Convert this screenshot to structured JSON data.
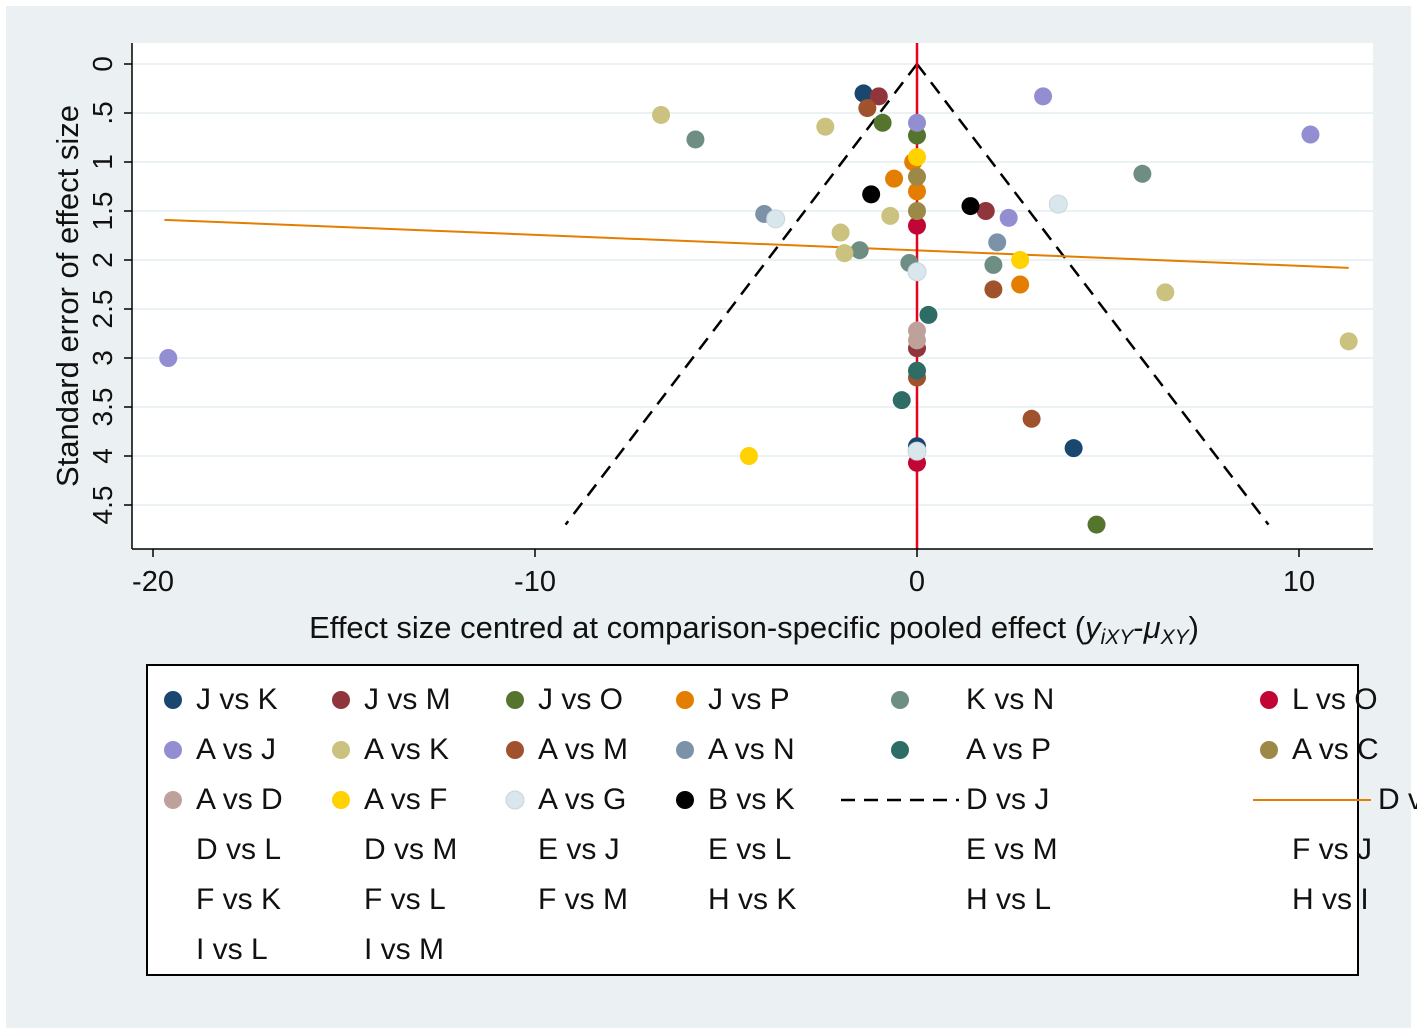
{
  "chart_data": {
    "type": "scatter",
    "title": "",
    "xlabel": "Effect size centred at comparison-specific pooled effect (",
    "xlabel_math": "y",
    "xlabel_math_sub": "iXY",
    "xlabel_dash": "-",
    "xlabel_mu": "μ",
    "xlabel_mu_sub": "XY",
    "xlabel_close": ")",
    "ylabel": "Standard error of effect size",
    "xlim": [
      -20.5,
      12.0
    ],
    "ylim": [
      0,
      4.95
    ],
    "y_reversed": true,
    "x_ticks": [
      -20,
      -10,
      0,
      10
    ],
    "x_tick_labels": [
      "-20",
      "-10",
      "0",
      "10"
    ],
    "y_ticks": [
      0,
      0.5,
      1,
      1.5,
      2,
      2.5,
      3,
      3.5,
      4,
      4.5
    ],
    "y_tick_labels": [
      "0",
      ".5",
      "1",
      "1.5",
      "2",
      "2.5",
      "3",
      "3.5",
      "4",
      "4.5"
    ],
    "grid": true,
    "reference_line": {
      "x": 0,
      "color": "#e8001c"
    },
    "funnel": {
      "apex": [
        0,
        0
      ],
      "left_end": [
        -9.2,
        4.7
      ],
      "right_end": [
        9.2,
        4.7
      ]
    },
    "regression_line": {
      "x1": -19.7,
      "y1": 1.59,
      "x2": 11.3,
      "y2": 2.08
    },
    "series": [
      {
        "name": "J vs K",
        "color": "#1a476f",
        "points": [
          [
            -1.4,
            0.3
          ],
          [
            0,
            3.9
          ],
          [
            4.1,
            3.92
          ]
        ]
      },
      {
        "name": "J vs M",
        "color": "#90353b",
        "points": [
          [
            -1.0,
            0.33
          ],
          [
            1.8,
            1.5
          ],
          [
            0,
            2.9
          ]
        ]
      },
      {
        "name": "J vs O",
        "color": "#55752f",
        "points": [
          [
            -0.9,
            0.6
          ],
          [
            0,
            0.73
          ],
          [
            4.7,
            4.7
          ]
        ]
      },
      {
        "name": "J vs P",
        "color": "#e37e00",
        "points": [
          [
            -0.6,
            1.17
          ],
          [
            -0.1,
            1.0
          ],
          [
            0,
            1.3
          ],
          [
            2.7,
            2.25
          ]
        ]
      },
      {
        "name": "K vs N",
        "color": "#6e8e84",
        "points": [
          [
            -5.8,
            0.77
          ],
          [
            5.9,
            1.12
          ],
          [
            -1.5,
            1.9
          ],
          [
            -0.2,
            2.03
          ],
          [
            2.0,
            2.05
          ]
        ]
      },
      {
        "name": "L vs O",
        "color": "#c10534",
        "points": [
          [
            0,
            1.65
          ],
          [
            0,
            4.07
          ]
        ]
      },
      {
        "name": "A vs J",
        "color": "#938dd2",
        "points": [
          [
            3.3,
            0.33
          ],
          [
            10.3,
            0.72
          ],
          [
            0,
            0.6
          ],
          [
            2.4,
            1.57
          ],
          [
            -19.6,
            3.0
          ]
        ]
      },
      {
        "name": "A vs K",
        "color": "#cac27e",
        "points": [
          [
            -6.7,
            0.52
          ],
          [
            -2.4,
            0.64
          ],
          [
            -0.7,
            1.55
          ],
          [
            -2.0,
            1.72
          ],
          [
            -1.9,
            1.93
          ],
          [
            6.5,
            2.33
          ],
          [
            11.3,
            2.83
          ]
        ]
      },
      {
        "name": "A vs M",
        "color": "#a0522d",
        "points": [
          [
            -1.3,
            0.45
          ],
          [
            2.0,
            2.3
          ],
          [
            0,
            3.2
          ],
          [
            3.0,
            3.62
          ]
        ]
      },
      {
        "name": "A vs N",
        "color": "#7b92a8",
        "points": [
          [
            -4.0,
            1.53
          ],
          [
            2.1,
            1.82
          ]
        ]
      },
      {
        "name": "A vs P",
        "color": "#2d6d66",
        "points": [
          [
            0.3,
            2.56
          ],
          [
            0,
            3.13
          ],
          [
            -0.4,
            3.43
          ]
        ]
      },
      {
        "name": "A vs C",
        "color": "#9c8847",
        "points": [
          [
            0,
            1.15
          ],
          [
            0,
            1.5
          ]
        ]
      },
      {
        "name": "A vs D",
        "color": "#bfa19c",
        "points": [
          [
            0,
            2.72
          ],
          [
            0,
            2.82
          ]
        ]
      },
      {
        "name": "A vs F",
        "color": "#ffd200",
        "points": [
          [
            0,
            0.95
          ],
          [
            2.7,
            2.0
          ],
          [
            -4.4,
            4.0
          ]
        ]
      },
      {
        "name": "A vs G",
        "color": "#d9e6eb",
        "points": [
          [
            3.7,
            1.43
          ],
          [
            -3.7,
            1.58
          ],
          [
            0,
            2.12
          ],
          [
            0,
            3.95
          ]
        ]
      },
      {
        "name": "B vs K",
        "color": "#000000",
        "points": [
          [
            -1.2,
            1.33
          ],
          [
            1.4,
            1.45
          ]
        ]
      }
    ],
    "legend": {
      "columns": 6,
      "entries": [
        {
          "label": "J vs K",
          "type": "marker",
          "color": "#1a476f"
        },
        {
          "label": "J vs M",
          "type": "marker",
          "color": "#90353b"
        },
        {
          "label": "J vs O",
          "type": "marker",
          "color": "#55752f"
        },
        {
          "label": "J vs P",
          "type": "marker",
          "color": "#e37e00"
        },
        {
          "label": "K vs N",
          "type": "marker",
          "color": "#6e8e84"
        },
        {
          "label": "L vs O",
          "type": "marker",
          "color": "#c10534"
        },
        {
          "label": "A vs J",
          "type": "marker",
          "color": "#938dd2"
        },
        {
          "label": "A vs K",
          "type": "marker",
          "color": "#cac27e"
        },
        {
          "label": "A vs M",
          "type": "marker",
          "color": "#a0522d"
        },
        {
          "label": "A vs N",
          "type": "marker",
          "color": "#7b92a8"
        },
        {
          "label": "A vs P",
          "type": "marker",
          "color": "#2d6d66"
        },
        {
          "label": "A vs C",
          "type": "marker",
          "color": "#9c8847"
        },
        {
          "label": "A vs D",
          "type": "marker",
          "color": "#bfa19c"
        },
        {
          "label": "A vs F",
          "type": "marker",
          "color": "#ffd200"
        },
        {
          "label": "A vs G",
          "type": "marker",
          "color": "#d9e6eb"
        },
        {
          "label": "B vs K",
          "type": "marker",
          "color": "#000000"
        },
        {
          "label": "D vs J",
          "type": "dashed-line",
          "color": "#000000"
        },
        {
          "label": "D vs K",
          "type": "line",
          "color": "#e37e00"
        },
        {
          "label": "D vs L",
          "type": "none",
          "color": ""
        },
        {
          "label": "D vs M",
          "type": "none",
          "color": ""
        },
        {
          "label": "E vs J",
          "type": "none",
          "color": ""
        },
        {
          "label": "E vs L",
          "type": "none",
          "color": ""
        },
        {
          "label": "E vs M",
          "type": "none",
          "color": ""
        },
        {
          "label": "F vs J",
          "type": "none",
          "color": ""
        },
        {
          "label": "F vs K",
          "type": "none",
          "color": ""
        },
        {
          "label": "F vs L",
          "type": "none",
          "color": ""
        },
        {
          "label": "F vs M",
          "type": "none",
          "color": ""
        },
        {
          "label": "H vs K",
          "type": "none",
          "color": ""
        },
        {
          "label": "H vs L",
          "type": "none",
          "color": ""
        },
        {
          "label": "H vs I",
          "type": "none",
          "color": ""
        },
        {
          "label": "I vs L",
          "type": "none",
          "color": ""
        },
        {
          "label": "I vs M",
          "type": "none",
          "color": ""
        }
      ]
    }
  }
}
